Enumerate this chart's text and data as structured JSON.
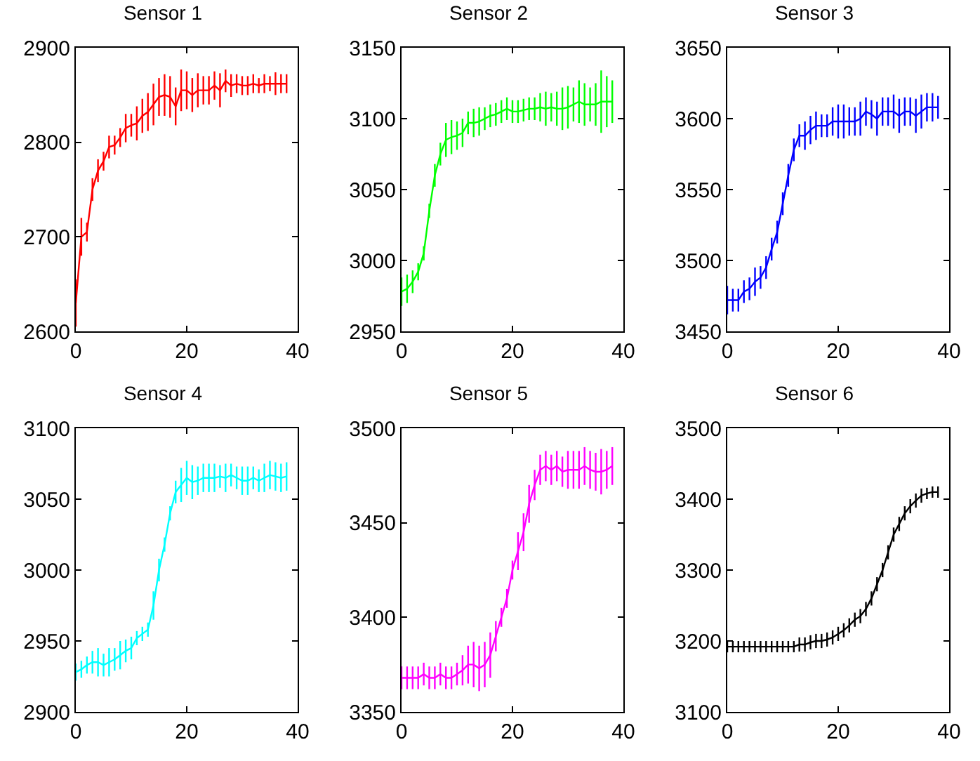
{
  "chart_data": [
    {
      "type": "line",
      "title": "Sensor 1",
      "xlim": [
        0,
        40
      ],
      "xticks": [
        0,
        20,
        40
      ],
      "ylim": [
        2600,
        2900
      ],
      "yticks": [
        2600,
        2700,
        2800,
        2900
      ],
      "x": [
        0,
        1,
        2,
        3,
        4,
        5,
        6,
        7,
        8,
        9,
        10,
        11,
        12,
        13,
        14,
        15,
        16,
        17,
        18,
        19,
        20,
        21,
        22,
        23,
        24,
        25,
        26,
        27,
        28,
        29,
        30,
        31,
        32,
        33,
        34,
        35,
        36,
        37,
        38
      ],
      "series": [
        {
          "color": "#ff0000",
          "values": [
            2630,
            2700,
            2705,
            2750,
            2770,
            2780,
            2795,
            2797,
            2805,
            2815,
            2818,
            2820,
            2828,
            2832,
            2840,
            2848,
            2850,
            2848,
            2838,
            2855,
            2855,
            2850,
            2855,
            2855,
            2855,
            2860,
            2855,
            2865,
            2860,
            2862,
            2860,
            2860,
            2862,
            2860,
            2862,
            2862,
            2862,
            2862,
            2862
          ],
          "errors": [
            25,
            20,
            10,
            12,
            12,
            10,
            12,
            10,
            10,
            15,
            12,
            18,
            18,
            20,
            22,
            20,
            22,
            22,
            20,
            22,
            20,
            18,
            18,
            15,
            15,
            15,
            18,
            12,
            12,
            10,
            10,
            10,
            10,
            8,
            10,
            8,
            12,
            10,
            10
          ]
        }
      ]
    },
    {
      "type": "line",
      "title": "Sensor 2",
      "xlim": [
        0,
        40
      ],
      "xticks": [
        0,
        20,
        40
      ],
      "ylim": [
        2950,
        3150
      ],
      "yticks": [
        2950,
        3000,
        3050,
        3100,
        3150
      ],
      "x": [
        0,
        1,
        2,
        3,
        4,
        5,
        6,
        7,
        8,
        9,
        10,
        11,
        12,
        13,
        14,
        15,
        16,
        17,
        18,
        19,
        20,
        21,
        22,
        23,
        24,
        25,
        26,
        27,
        28,
        29,
        30,
        31,
        32,
        33,
        34,
        35,
        36,
        37,
        38
      ],
      "series": [
        {
          "color": "#00ff00",
          "values": [
            2978,
            2980,
            2985,
            2992,
            3005,
            3035,
            3060,
            3075,
            3085,
            3087,
            3088,
            3090,
            3097,
            3097,
            3098,
            3100,
            3102,
            3103,
            3105,
            3107,
            3105,
            3105,
            3106,
            3107,
            3107,
            3108,
            3107,
            3108,
            3107,
            3107,
            3108,
            3110,
            3112,
            3110,
            3110,
            3110,
            3112,
            3112,
            3112
          ],
          "errors": [
            10,
            10,
            8,
            6,
            5,
            5,
            8,
            8,
            12,
            12,
            10,
            10,
            8,
            10,
            10,
            8,
            8,
            8,
            8,
            8,
            8,
            8,
            8,
            8,
            8,
            10,
            12,
            10,
            12,
            15,
            15,
            12,
            15,
            15,
            12,
            15,
            22,
            18,
            15
          ]
        }
      ]
    },
    {
      "type": "line",
      "title": "Sensor 3",
      "xlim": [
        0,
        40
      ],
      "xticks": [
        0,
        20,
        40
      ],
      "ylim": [
        3450,
        3650
      ],
      "yticks": [
        3450,
        3500,
        3550,
        3600,
        3650
      ],
      "x": [
        0,
        1,
        2,
        3,
        4,
        5,
        6,
        7,
        8,
        9,
        10,
        11,
        12,
        13,
        14,
        15,
        16,
        17,
        18,
        19,
        20,
        21,
        22,
        23,
        24,
        25,
        26,
        27,
        28,
        29,
        30,
        31,
        32,
        33,
        34,
        35,
        36,
        37,
        38
      ],
      "series": [
        {
          "color": "#0000ff",
          "values": [
            3472,
            3472,
            3472,
            3478,
            3480,
            3485,
            3488,
            3495,
            3508,
            3520,
            3540,
            3560,
            3578,
            3588,
            3588,
            3592,
            3595,
            3595,
            3595,
            3598,
            3598,
            3598,
            3598,
            3598,
            3600,
            3605,
            3603,
            3600,
            3605,
            3605,
            3605,
            3602,
            3605,
            3605,
            3602,
            3605,
            3608,
            3608,
            3608
          ],
          "errors": [
            10,
            8,
            8,
            8,
            8,
            10,
            8,
            8,
            8,
            8,
            8,
            8,
            8,
            8,
            10,
            10,
            10,
            8,
            8,
            10,
            12,
            12,
            10,
            10,
            12,
            10,
            10,
            12,
            10,
            10,
            12,
            12,
            10,
            10,
            12,
            12,
            10,
            10,
            8
          ]
        }
      ]
    },
    {
      "type": "line",
      "title": "Sensor 4",
      "xlim": [
        0,
        40
      ],
      "xticks": [
        0,
        20,
        40
      ],
      "ylim": [
        2900,
        3100
      ],
      "yticks": [
        2900,
        2950,
        3000,
        3050,
        3100
      ],
      "x": [
        0,
        1,
        2,
        3,
        4,
        5,
        6,
        7,
        8,
        9,
        10,
        11,
        12,
        13,
        14,
        15,
        16,
        17,
        18,
        19,
        20,
        21,
        22,
        23,
        24,
        25,
        26,
        27,
        28,
        29,
        30,
        31,
        32,
        33,
        34,
        35,
        36,
        37,
        38
      ],
      "series": [
        {
          "color": "#00ffff",
          "values": [
            2928,
            2930,
            2933,
            2935,
            2935,
            2933,
            2935,
            2937,
            2940,
            2943,
            2945,
            2952,
            2955,
            2958,
            2975,
            3000,
            3018,
            3040,
            3055,
            3060,
            3065,
            3062,
            3063,
            3065,
            3065,
            3065,
            3066,
            3065,
            3067,
            3065,
            3063,
            3063,
            3065,
            3063,
            3065,
            3067,
            3066,
            3065,
            3066
          ],
          "errors": [
            6,
            6,
            6,
            8,
            10,
            8,
            10,
            8,
            10,
            8,
            8,
            5,
            5,
            5,
            10,
            8,
            5,
            5,
            8,
            12,
            12,
            12,
            10,
            10,
            10,
            10,
            8,
            10,
            8,
            8,
            10,
            10,
            8,
            8,
            10,
            10,
            10,
            10,
            10
          ]
        }
      ]
    },
    {
      "type": "line",
      "title": "Sensor 5",
      "xlim": [
        0,
        40
      ],
      "xticks": [
        0,
        20,
        40
      ],
      "ylim": [
        3350,
        3500
      ],
      "yticks": [
        3350,
        3400,
        3450,
        3500
      ],
      "x": [
        0,
        1,
        2,
        3,
        4,
        5,
        6,
        7,
        8,
        9,
        10,
        11,
        12,
        13,
        14,
        15,
        16,
        17,
        18,
        19,
        20,
        21,
        22,
        23,
        24,
        25,
        26,
        27,
        28,
        29,
        30,
        31,
        32,
        33,
        34,
        35,
        36,
        37,
        38
      ],
      "series": [
        {
          "color": "#ff00ff",
          "values": [
            3368,
            3368,
            3368,
            3368,
            3370,
            3368,
            3368,
            3370,
            3368,
            3368,
            3370,
            3372,
            3375,
            3375,
            3373,
            3375,
            3380,
            3390,
            3400,
            3410,
            3425,
            3435,
            3445,
            3460,
            3470,
            3478,
            3480,
            3478,
            3480,
            3477,
            3478,
            3478,
            3478,
            3480,
            3478,
            3477,
            3477,
            3478,
            3480
          ],
          "errors": [
            6,
            6,
            6,
            6,
            6,
            6,
            6,
            6,
            6,
            6,
            6,
            8,
            10,
            12,
            12,
            12,
            12,
            8,
            5,
            5,
            5,
            10,
            10,
            10,
            8,
            8,
            8,
            8,
            8,
            8,
            10,
            10,
            10,
            10,
            10,
            10,
            12,
            10,
            10
          ]
        }
      ]
    },
    {
      "type": "line",
      "title": "Sensor 6",
      "xlim": [
        0,
        40
      ],
      "xticks": [
        0,
        20,
        40
      ],
      "ylim": [
        3100,
        3500
      ],
      "yticks": [
        3100,
        3200,
        3300,
        3400,
        3500
      ],
      "x": [
        0,
        1,
        2,
        3,
        4,
        5,
        6,
        7,
        8,
        9,
        10,
        11,
        12,
        13,
        14,
        15,
        16,
        17,
        18,
        19,
        20,
        21,
        22,
        23,
        24,
        25,
        26,
        27,
        28,
        29,
        30,
        31,
        32,
        33,
        34,
        35,
        36,
        37,
        38
      ],
      "series": [
        {
          "color": "#000000",
          "values": [
            3192,
            3192,
            3192,
            3192,
            3192,
            3192,
            3192,
            3192,
            3192,
            3192,
            3192,
            3192,
            3192,
            3195,
            3195,
            3198,
            3200,
            3200,
            3202,
            3205,
            3210,
            3215,
            3222,
            3230,
            3235,
            3245,
            3260,
            3280,
            3300,
            3325,
            3350,
            3365,
            3380,
            3390,
            3398,
            3405,
            3408,
            3410,
            3410
          ],
          "errors": [
            8,
            8,
            8,
            8,
            8,
            8,
            8,
            8,
            8,
            8,
            8,
            8,
            8,
            10,
            10,
            10,
            10,
            10,
            10,
            10,
            10,
            10,
            10,
            10,
            10,
            10,
            10,
            10,
            10,
            10,
            10,
            10,
            10,
            10,
            10,
            10,
            8,
            8,
            8
          ]
        }
      ]
    }
  ]
}
